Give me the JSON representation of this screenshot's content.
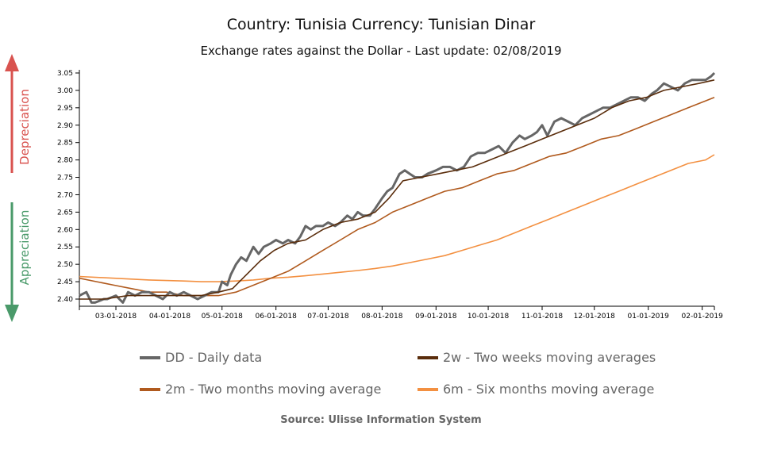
{
  "header": {
    "title": "Country: Tunisia Currency: Tunisian Dinar",
    "subtitle": "Exchange rates against the Dollar - Last update: 02/08/2019"
  },
  "side_labels": {
    "depreciation": "Depreciation",
    "appreciation": "Appreciation",
    "depreciation_color": "#d9534f",
    "appreciation_color": "#4a9a6a"
  },
  "legend": [
    {
      "label": "DD - Daily data",
      "color": "#666666"
    },
    {
      "label": "2w - Two weeks moving averages",
      "color": "#5a2d0c"
    },
    {
      "label": "2m - Two months moving average",
      "color": "#b05a1e"
    },
    {
      "label": "6m - Six months moving average",
      "color": "#f39041"
    }
  ],
  "source": "Source: Ulisse Information System",
  "chart_data": {
    "type": "line",
    "title": "Country: Tunisia Currency: Tunisian Dinar",
    "subtitle": "Exchange rates against the Dollar - Last update: 02/08/2019",
    "xlabel": "",
    "ylabel": "",
    "x_unit": "days since 02-08-2018",
    "xlim": [
      0,
      365
    ],
    "ylim": [
      2.38,
      3.06
    ],
    "yticks": [
      2.4,
      2.45,
      2.5,
      2.55,
      2.6,
      2.65,
      2.7,
      2.75,
      2.8,
      2.85,
      2.9,
      2.95,
      3.0,
      3.05
    ],
    "ytick_labels": [
      "2.40",
      "2.45",
      "2.50",
      "2.55",
      "2.60",
      "2.65",
      "2.70",
      "2.75",
      "2.80",
      "2.85",
      "2.90",
      "2.95",
      "3.00",
      "3.05"
    ],
    "xticks": [
      21,
      52,
      82,
      113,
      143,
      174,
      205,
      235,
      266,
      296,
      327,
      358
    ],
    "xtick_labels": [
      "03-01-2018",
      "04-01-2018",
      "05-01-2018",
      "06-01-2018",
      "07-01-2018",
      "08-01-2018",
      "09-01-2018",
      "10-01-2018",
      "11-01-2018",
      "12-01-2018",
      "01-01-2019",
      "02-01-2019"
    ],
    "grid": false,
    "legend_position": "bottom",
    "series": [
      {
        "name": "DD - Daily data",
        "x": [
          0,
          4,
          7,
          9,
          14,
          16,
          21,
          25,
          28,
          32,
          36,
          40,
          44,
          48,
          52,
          56,
          60,
          64,
          68,
          72,
          76,
          80,
          82,
          85,
          87,
          90,
          93,
          96,
          100,
          103,
          106,
          110,
          113,
          117,
          120,
          124,
          127,
          130,
          133,
          136,
          140,
          143,
          147,
          150,
          154,
          157,
          160,
          163,
          167,
          170,
          174,
          177,
          180,
          184,
          187,
          190,
          193,
          197,
          200,
          205,
          209,
          213,
          217,
          221,
          225,
          229,
          233,
          237,
          241,
          245,
          249,
          253,
          256,
          260,
          263,
          266,
          269,
          273,
          277,
          281,
          285,
          289,
          293,
          297,
          301,
          305,
          309,
          313,
          317,
          321,
          325,
          329,
          332,
          336,
          340,
          344,
          348,
          352,
          356,
          360,
          363,
          365
        ],
        "values": [
          2.41,
          2.42,
          2.39,
          2.39,
          2.4,
          2.4,
          2.41,
          2.39,
          2.42,
          2.41,
          2.42,
          2.42,
          2.41,
          2.4,
          2.42,
          2.41,
          2.42,
          2.41,
          2.4,
          2.41,
          2.42,
          2.42,
          2.45,
          2.44,
          2.47,
          2.5,
          2.52,
          2.51,
          2.55,
          2.53,
          2.55,
          2.56,
          2.57,
          2.56,
          2.57,
          2.56,
          2.58,
          2.61,
          2.6,
          2.61,
          2.61,
          2.62,
          2.61,
          2.62,
          2.64,
          2.63,
          2.65,
          2.64,
          2.64,
          2.66,
          2.69,
          2.71,
          2.72,
          2.76,
          2.77,
          2.76,
          2.75,
          2.75,
          2.76,
          2.77,
          2.78,
          2.78,
          2.77,
          2.78,
          2.81,
          2.82,
          2.82,
          2.83,
          2.84,
          2.82,
          2.85,
          2.87,
          2.86,
          2.87,
          2.88,
          2.9,
          2.87,
          2.91,
          2.92,
          2.91,
          2.9,
          2.92,
          2.93,
          2.94,
          2.95,
          2.95,
          2.96,
          2.97,
          2.98,
          2.98,
          2.97,
          2.99,
          3.0,
          3.02,
          3.01,
          3.0,
          3.02,
          3.03,
          3.03,
          3.03,
          3.04,
          3.05
        ]
      },
      {
        "name": "2w - Two weeks moving averages",
        "x": [
          0,
          14,
          28,
          42,
          56,
          70,
          80,
          88,
          96,
          104,
          112,
          120,
          130,
          140,
          150,
          160,
          170,
          178,
          186,
          196,
          206,
          216,
          226,
          236,
          246,
          256,
          266,
          276,
          286,
          296,
          306,
          316,
          326,
          336,
          346,
          356,
          365
        ],
        "values": [
          2.4,
          2.4,
          2.41,
          2.41,
          2.41,
          2.41,
          2.42,
          2.43,
          2.47,
          2.51,
          2.54,
          2.56,
          2.57,
          2.6,
          2.62,
          2.63,
          2.65,
          2.69,
          2.74,
          2.75,
          2.76,
          2.77,
          2.78,
          2.8,
          2.82,
          2.84,
          2.86,
          2.88,
          2.9,
          2.92,
          2.95,
          2.97,
          2.98,
          3.0,
          3.01,
          3.02,
          3.03
        ]
      },
      {
        "name": "2m - Two months moving average",
        "x": [
          0,
          10,
          20,
          30,
          40,
          50,
          60,
          70,
          80,
          90,
          100,
          110,
          120,
          130,
          140,
          150,
          160,
          170,
          180,
          190,
          200,
          210,
          220,
          230,
          240,
          250,
          260,
          270,
          280,
          290,
          300,
          310,
          320,
          330,
          340,
          350,
          360,
          365
        ],
        "values": [
          2.46,
          2.45,
          2.44,
          2.43,
          2.42,
          2.42,
          2.41,
          2.41,
          2.41,
          2.42,
          2.44,
          2.46,
          2.48,
          2.51,
          2.54,
          2.57,
          2.6,
          2.62,
          2.65,
          2.67,
          2.69,
          2.71,
          2.72,
          2.74,
          2.76,
          2.77,
          2.79,
          2.81,
          2.82,
          2.84,
          2.86,
          2.87,
          2.89,
          2.91,
          2.93,
          2.95,
          2.97,
          2.98
        ]
      },
      {
        "name": "6m - Six months moving average",
        "x": [
          0,
          20,
          40,
          60,
          70,
          80,
          90,
          100,
          110,
          120,
          130,
          140,
          150,
          160,
          170,
          180,
          190,
          200,
          210,
          220,
          230,
          240,
          250,
          260,
          270,
          280,
          290,
          300,
          310,
          320,
          330,
          340,
          350,
          360,
          365
        ],
        "values": [
          2.465,
          2.46,
          2.455,
          2.452,
          2.45,
          2.45,
          2.452,
          2.455,
          2.46,
          2.463,
          2.467,
          2.472,
          2.477,
          2.482,
          2.488,
          2.495,
          2.505,
          2.515,
          2.525,
          2.54,
          2.555,
          2.57,
          2.59,
          2.61,
          2.63,
          2.65,
          2.67,
          2.69,
          2.71,
          2.73,
          2.75,
          2.77,
          2.79,
          2.8,
          2.815
        ]
      }
    ]
  }
}
